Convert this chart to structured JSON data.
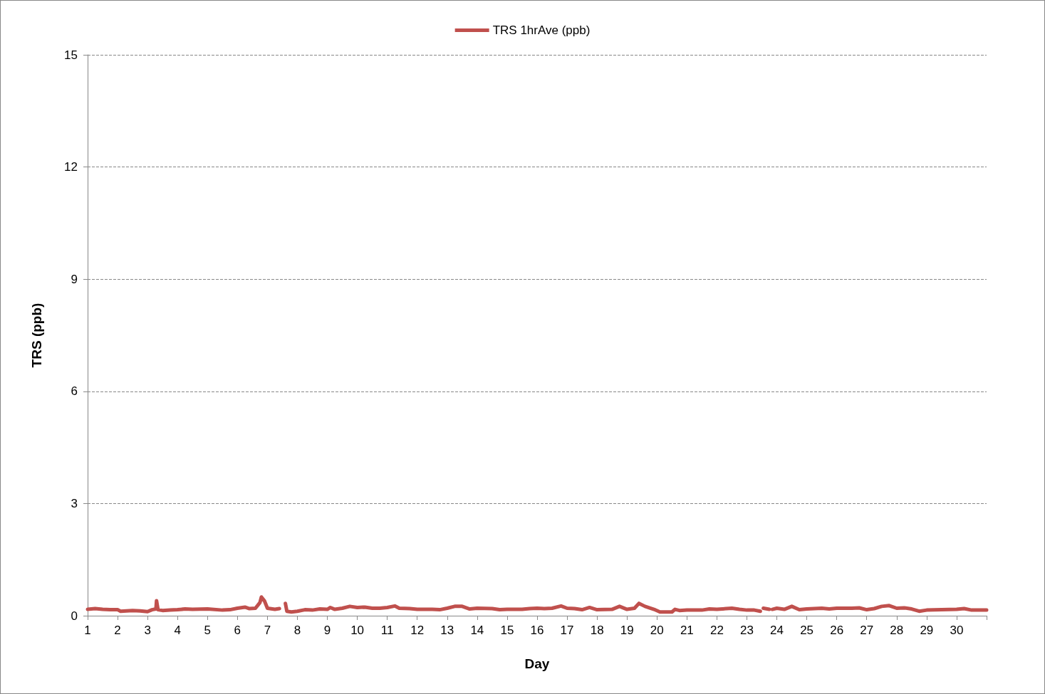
{
  "chart_data": {
    "type": "line",
    "xlabel": "Day",
    "ylabel": "TRS (ppb)",
    "legend": "top",
    "grid": "y",
    "line_style": "solid",
    "marker": "none",
    "xlim": [
      1,
      31
    ],
    "xticks": [
      1,
      2,
      3,
      4,
      5,
      6,
      7,
      8,
      9,
      10,
      11,
      12,
      13,
      14,
      15,
      16,
      17,
      18,
      19,
      20,
      21,
      22,
      23,
      24,
      25,
      26,
      27,
      28,
      29,
      30,
      {
        "value": 31,
        "label": null
      }
    ],
    "ylim": [
      0,
      15
    ],
    "yticks": [
      0,
      3,
      6,
      9,
      12,
      15
    ],
    "x": [
      1,
      1.25,
      1.5,
      1.75,
      2,
      2.1,
      2.3,
      2.5,
      2.75,
      3,
      3.15,
      3.28,
      3.3,
      3.35,
      3.5,
      3.75,
      4,
      4.25,
      4.5,
      5,
      5.5,
      5.75,
      6,
      6.25,
      6.4,
      6.6,
      6.75,
      6.8,
      6.9,
      7,
      7.25,
      7.4,
      7.45,
      7.6,
      7.65,
      7.8,
      8,
      8.25,
      8.5,
      8.75,
      9,
      9.1,
      9.25,
      9.5,
      9.75,
      10,
      10.25,
      10.5,
      10.75,
      11,
      11.25,
      11.4,
      11.75,
      12,
      12.5,
      12.75,
      13,
      13.25,
      13.5,
      13.75,
      14,
      14.5,
      14.75,
      15,
      15.5,
      15.75,
      16,
      16.25,
      16.5,
      16.8,
      17,
      17.25,
      17.5,
      17.75,
      18,
      18.5,
      18.75,
      19,
      19.25,
      19.4,
      19.6,
      19.9,
      20.1,
      20.5,
      20.6,
      20.75,
      21,
      21.5,
      21.75,
      22,
      22.5,
      22.75,
      23,
      23.25,
      23.45,
      23.5,
      23.55,
      23.75,
      23.8,
      23.85,
      24,
      24.25,
      24.5,
      24.75,
      25,
      25.5,
      25.75,
      26,
      26.5,
      26.75,
      27,
      27.25,
      27.5,
      27.75,
      28,
      28.25,
      28.5,
      28.75,
      29,
      29.5,
      30,
      30.25,
      30.5,
      31
    ],
    "series": [
      {
        "name": "TRS 1hrAve (ppb)",
        "color": "#c0504d",
        "values": [
          0.17,
          0.19,
          0.17,
          0.16,
          0.16,
          0.12,
          0.13,
          0.14,
          0.13,
          0.11,
          0.16,
          0.18,
          0.4,
          0.16,
          0.14,
          0.15,
          0.16,
          0.18,
          0.17,
          0.18,
          0.15,
          0.16,
          0.2,
          0.23,
          0.19,
          0.2,
          0.35,
          0.5,
          0.4,
          0.2,
          0.17,
          0.19,
          null,
          0.33,
          0.12,
          0.1,
          0.12,
          0.16,
          0.15,
          0.18,
          0.17,
          0.22,
          0.17,
          0.2,
          0.25,
          0.22,
          0.23,
          0.2,
          0.2,
          0.22,
          0.26,
          0.2,
          0.19,
          0.17,
          0.17,
          0.16,
          0.2,
          0.25,
          0.25,
          0.18,
          0.2,
          0.19,
          0.16,
          0.17,
          0.17,
          0.19,
          0.2,
          0.19,
          0.2,
          0.26,
          0.2,
          0.19,
          0.16,
          0.22,
          0.16,
          0.17,
          0.25,
          0.17,
          0.2,
          0.33,
          0.25,
          0.17,
          0.1,
          0.1,
          0.17,
          0.14,
          0.15,
          0.15,
          0.18,
          0.17,
          0.2,
          0.17,
          0.15,
          0.15,
          0.12,
          null,
          0.2,
          0.17,
          null,
          0.17,
          0.2,
          0.17,
          0.25,
          0.16,
          0.18,
          0.2,
          0.18,
          0.2,
          0.2,
          0.21,
          0.16,
          0.19,
          0.25,
          0.27,
          0.2,
          0.21,
          0.18,
          0.12,
          0.15,
          0.16,
          0.17,
          0.19,
          0.15,
          0.15
        ]
      }
    ]
  }
}
